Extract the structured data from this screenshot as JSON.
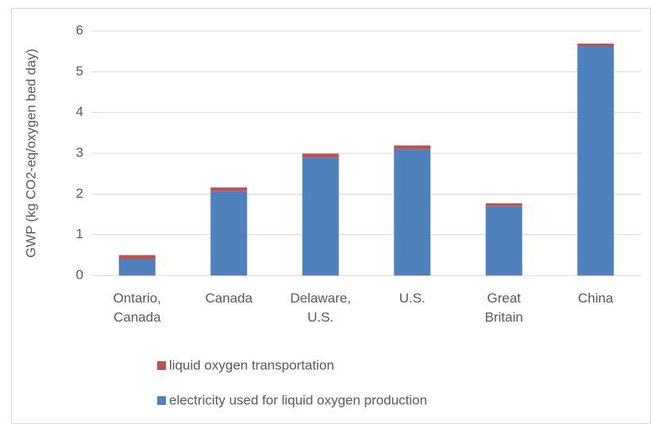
{
  "chart_data": {
    "type": "stacked_bar",
    "y_label": "GWP (kg CO2-eq/oxygen bed day)",
    "categories": [
      "Ontario, Canada",
      "Canada",
      "Delaware, U.S.",
      "U.S.",
      "Great Britain",
      "China"
    ],
    "series": [
      {
        "name": "electricity used for liquid oxygen production",
        "color": "#4f81bd",
        "values": [
          0.41,
          2.07,
          2.9,
          3.1,
          1.7,
          5.63
        ]
      },
      {
        "name": "liquid oxygen transportation",
        "color": "#c0504d",
        "values": [
          0.09,
          0.09,
          0.09,
          0.09,
          0.07,
          0.06
        ]
      }
    ],
    "ylim": [
      0,
      6
    ],
    "yticks": [
      0,
      1,
      2,
      3,
      4,
      5,
      6
    ],
    "grid": true,
    "legend": "bottom"
  }
}
